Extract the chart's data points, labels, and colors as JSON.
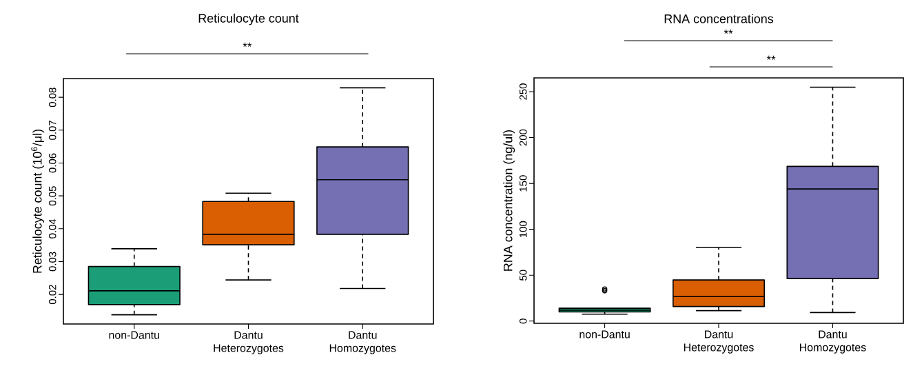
{
  "chart_data": [
    {
      "type": "box",
      "title": "Reticulocyte count",
      "ylabel": "Reticulocyte count (10$^{6}$/μl)",
      "categories": [
        "non-Dantu",
        "Dantu Heterozygotes",
        "Dantu Homozygotes"
      ],
      "colors": [
        "#1b9e77",
        "#d95f02",
        "#7570b3"
      ],
      "boxes": [
        {
          "low": 0.0138,
          "q1": 0.0169,
          "median": 0.0211,
          "q3": 0.0285,
          "high": 0.0339
        },
        {
          "low": 0.0244,
          "q1": 0.0351,
          "median": 0.0383,
          "q3": 0.0483,
          "high": 0.0508
        },
        {
          "low": 0.0218,
          "q1": 0.0383,
          "median": 0.0549,
          "q3": 0.0649,
          "high": 0.0829
        }
      ],
      "ylim": [
        0.011,
        0.0857
      ],
      "yticks": [
        0.02,
        0.03,
        0.04,
        0.05,
        0.06,
        0.07,
        0.08
      ],
      "annotations": [
        "**"
      ]
    },
    {
      "type": "box",
      "title": "RNA concentrations",
      "ylabel": "RNA concentration (ng/ul)",
      "categories": [
        "non-Dantu",
        "Dantu Heterozygotes",
        "Dantu Homozygotes"
      ],
      "colors": [
        "#1b9e77",
        "#d95f02",
        "#7570b3"
      ],
      "boxes": [
        {
          "low": 7.5,
          "q1": 10,
          "median": 12,
          "q3": 14,
          "high": 14,
          "outliers": [
            33,
            35
          ]
        },
        {
          "low": 11.4,
          "q1": 15.9,
          "median": 26.7,
          "q3": 44.8,
          "high": 80.2
        },
        {
          "low": 9.3,
          "q1": 46.3,
          "median": 144,
          "q3": 168.6,
          "high": 254.8
        }
      ],
      "ylim": [
        -2.4,
        265
      ],
      "yticks": [
        0,
        50,
        100,
        150,
        200,
        250
      ],
      "annotations": [
        "**",
        "**"
      ]
    }
  ]
}
